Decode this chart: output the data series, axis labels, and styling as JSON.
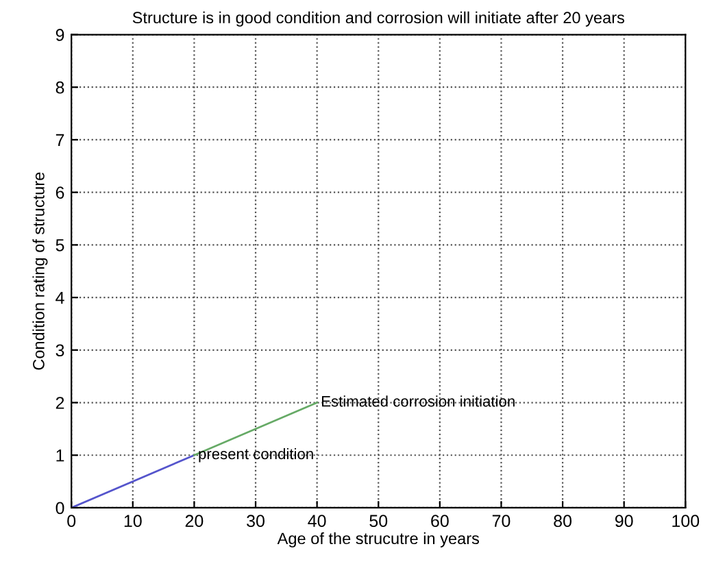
{
  "chart_data": {
    "type": "line",
    "title": "Structure is in good condition and corrosion will initiate after 20 years",
    "xlabel": "Age of the strucutre in years",
    "ylabel": "Condition rating of structure",
    "series": [
      {
        "color": "#5555cc",
        "x": [
          0,
          20
        ],
        "values": [
          0,
          1
        ]
      },
      {
        "color": "#66aa66",
        "x": [
          20,
          40
        ],
        "values": [
          1,
          2
        ]
      }
    ],
    "annotations": [
      {
        "text": "present condition",
        "x": 20,
        "y": 1
      },
      {
        "text": "Estimated corrosion initiation",
        "x": 40,
        "y": 2
      }
    ],
    "xlim": [
      0,
      100
    ],
    "ylim": [
      0,
      9
    ],
    "xticks": [
      0,
      10,
      20,
      30,
      40,
      50,
      60,
      70,
      80,
      90,
      100
    ],
    "yticks": [
      0,
      1,
      2,
      3,
      4,
      5,
      6,
      7,
      8,
      9
    ],
    "grid": true,
    "line_style": "solid",
    "marker": "none"
  }
}
